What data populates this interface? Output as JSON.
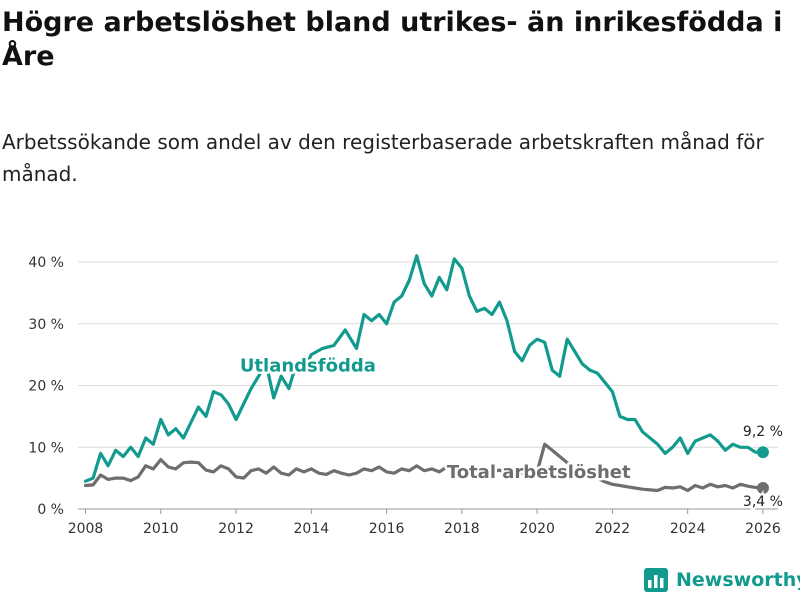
{
  "title": "Högre arbetslöshet bland utrikes- än inrikesfödda i Åre",
  "subtitle": "Arbetssökande som andel av den registerbaserade arbetskraften månad för månad.",
  "brand": {
    "name": "Newsworthy",
    "icon": "bar-chart-icon"
  },
  "chart_data": {
    "type": "line",
    "title": "Högre arbetslöshet bland utrikes- än inrikesfödda i Åre",
    "ylabel": "",
    "xlabel": "",
    "ylim": [
      0,
      40
    ],
    "xlim": [
      2007.8,
      2026.4
    ],
    "yticks": [
      0,
      10,
      20,
      30,
      40
    ],
    "ytick_labels": [
      "0 %",
      "10 %",
      "20 %",
      "30 %",
      "40 %"
    ],
    "xticks": [
      2008,
      2010,
      2012,
      2014,
      2016,
      2018,
      2020,
      2022,
      2024,
      2026
    ],
    "xtick_labels": [
      "2008",
      "2010",
      "2012",
      "2014",
      "2016",
      "2018",
      "2020",
      "2022",
      "2024",
      "2026"
    ],
    "grid": true,
    "series": [
      {
        "name": "Utlandsfödda",
        "color": "#139a8e",
        "points": [
          [
            2008.0,
            4.5
          ],
          [
            2008.2,
            5.0
          ],
          [
            2008.4,
            9.0
          ],
          [
            2008.6,
            7.0
          ],
          [
            2008.8,
            9.5
          ],
          [
            2009.0,
            8.5
          ],
          [
            2009.2,
            10.0
          ],
          [
            2009.4,
            8.5
          ],
          [
            2009.6,
            11.5
          ],
          [
            2009.8,
            10.5
          ],
          [
            2010.0,
            14.5
          ],
          [
            2010.2,
            12.0
          ],
          [
            2010.4,
            13.0
          ],
          [
            2010.6,
            11.5
          ],
          [
            2010.8,
            14.0
          ],
          [
            2011.0,
            16.5
          ],
          [
            2011.2,
            15.0
          ],
          [
            2011.4,
            19.0
          ],
          [
            2011.6,
            18.5
          ],
          [
            2011.8,
            17.0
          ],
          [
            2012.0,
            14.5
          ],
          [
            2012.2,
            17.0
          ],
          [
            2012.4,
            19.5
          ],
          [
            2012.6,
            21.5
          ],
          [
            2012.8,
            23.5
          ],
          [
            2013.0,
            18.0
          ],
          [
            2013.2,
            21.5
          ],
          [
            2013.4,
            19.5
          ],
          [
            2013.6,
            23.5
          ],
          [
            2013.8,
            22.5
          ],
          [
            2014.0,
            25.0
          ],
          [
            2014.3,
            26.0
          ],
          [
            2014.6,
            26.5
          ],
          [
            2014.9,
            29.0
          ],
          [
            2015.2,
            26.0
          ],
          [
            2015.4,
            31.5
          ],
          [
            2015.6,
            30.5
          ],
          [
            2015.8,
            31.5
          ],
          [
            2016.0,
            30.0
          ],
          [
            2016.2,
            33.5
          ],
          [
            2016.4,
            34.5
          ],
          [
            2016.6,
            37.0
          ],
          [
            2016.8,
            41.0
          ],
          [
            2017.0,
            36.5
          ],
          [
            2017.2,
            34.5
          ],
          [
            2017.4,
            37.5
          ],
          [
            2017.6,
            35.5
          ],
          [
            2017.8,
            40.5
          ],
          [
            2018.0,
            39.0
          ],
          [
            2018.2,
            34.5
          ],
          [
            2018.4,
            32.0
          ],
          [
            2018.6,
            32.5
          ],
          [
            2018.8,
            31.5
          ],
          [
            2019.0,
            33.5
          ],
          [
            2019.2,
            30.5
          ],
          [
            2019.4,
            25.5
          ],
          [
            2019.6,
            24.0
          ],
          [
            2019.8,
            26.5
          ],
          [
            2020.0,
            27.5
          ],
          [
            2020.2,
            27.0
          ],
          [
            2020.4,
            22.5
          ],
          [
            2020.6,
            21.5
          ],
          [
            2020.8,
            27.5
          ],
          [
            2021.0,
            25.5
          ],
          [
            2021.2,
            23.5
          ],
          [
            2021.4,
            22.5
          ],
          [
            2021.6,
            22.0
          ],
          [
            2021.8,
            20.5
          ],
          [
            2022.0,
            19.0
          ],
          [
            2022.2,
            15.0
          ],
          [
            2022.4,
            14.5
          ],
          [
            2022.6,
            14.5
          ],
          [
            2022.8,
            12.5
          ],
          [
            2023.0,
            11.5
          ],
          [
            2023.2,
            10.5
          ],
          [
            2023.4,
            9.0
          ],
          [
            2023.6,
            10.0
          ],
          [
            2023.8,
            11.5
          ],
          [
            2024.0,
            9.0
          ],
          [
            2024.2,
            11.0
          ],
          [
            2024.4,
            11.5
          ],
          [
            2024.6,
            12.0
          ],
          [
            2024.8,
            11.0
          ],
          [
            2025.0,
            9.5
          ],
          [
            2025.2,
            10.5
          ],
          [
            2025.4,
            10.0
          ],
          [
            2025.6,
            10.0
          ],
          [
            2025.8,
            9.2
          ],
          [
            2026.0,
            9.2
          ]
        ]
      },
      {
        "name": "Total arbetslöshet",
        "color": "#6e6e6e",
        "points": [
          [
            2008.0,
            3.8
          ],
          [
            2008.2,
            3.9
          ],
          [
            2008.4,
            5.5
          ],
          [
            2008.6,
            4.8
          ],
          [
            2008.8,
            5.0
          ],
          [
            2009.0,
            5.0
          ],
          [
            2009.2,
            4.6
          ],
          [
            2009.4,
            5.2
          ],
          [
            2009.6,
            7.0
          ],
          [
            2009.8,
            6.5
          ],
          [
            2010.0,
            8.0
          ],
          [
            2010.2,
            6.8
          ],
          [
            2010.4,
            6.5
          ],
          [
            2010.6,
            7.5
          ],
          [
            2010.8,
            7.6
          ],
          [
            2011.0,
            7.5
          ],
          [
            2011.2,
            6.3
          ],
          [
            2011.4,
            6.0
          ],
          [
            2011.6,
            7.0
          ],
          [
            2011.8,
            6.5
          ],
          [
            2012.0,
            5.2
          ],
          [
            2012.2,
            5.0
          ],
          [
            2012.4,
            6.2
          ],
          [
            2012.6,
            6.5
          ],
          [
            2012.8,
            5.8
          ],
          [
            2013.0,
            6.8
          ],
          [
            2013.2,
            5.8
          ],
          [
            2013.4,
            5.5
          ],
          [
            2013.6,
            6.5
          ],
          [
            2013.8,
            6.0
          ],
          [
            2014.0,
            6.5
          ],
          [
            2014.2,
            5.8
          ],
          [
            2014.4,
            5.6
          ],
          [
            2014.6,
            6.2
          ],
          [
            2014.8,
            5.8
          ],
          [
            2015.0,
            5.5
          ],
          [
            2015.2,
            5.8
          ],
          [
            2015.4,
            6.5
          ],
          [
            2015.6,
            6.2
          ],
          [
            2015.8,
            6.8
          ],
          [
            2016.0,
            6.0
          ],
          [
            2016.2,
            5.8
          ],
          [
            2016.4,
            6.5
          ],
          [
            2016.6,
            6.2
          ],
          [
            2016.8,
            7.0
          ],
          [
            2017.0,
            6.2
          ],
          [
            2017.2,
            6.5
          ],
          [
            2017.4,
            6.0
          ],
          [
            2017.6,
            6.8
          ],
          [
            2017.8,
            6.5
          ],
          [
            2018.0,
            6.3
          ],
          [
            2018.2,
            6.0
          ],
          [
            2018.4,
            6.5
          ],
          [
            2018.6,
            6.2
          ],
          [
            2018.8,
            6.0
          ],
          [
            2019.0,
            6.3
          ],
          [
            2019.2,
            5.8
          ],
          [
            2019.4,
            5.5
          ],
          [
            2019.6,
            5.8
          ],
          [
            2019.8,
            5.6
          ],
          [
            2020.0,
            6.0
          ],
          [
            2020.2,
            10.5
          ],
          [
            2020.4,
            9.5
          ],
          [
            2020.6,
            8.5
          ],
          [
            2020.8,
            7.5
          ],
          [
            2021.0,
            6.8
          ],
          [
            2021.2,
            6.0
          ],
          [
            2021.4,
            5.6
          ],
          [
            2021.6,
            5.0
          ],
          [
            2021.8,
            4.4
          ],
          [
            2022.0,
            4.0
          ],
          [
            2022.2,
            3.8
          ],
          [
            2022.4,
            3.6
          ],
          [
            2022.6,
            3.4
          ],
          [
            2022.8,
            3.2
          ],
          [
            2023.0,
            3.1
          ],
          [
            2023.2,
            3.0
          ],
          [
            2023.4,
            3.5
          ],
          [
            2023.6,
            3.4
          ],
          [
            2023.8,
            3.6
          ],
          [
            2024.0,
            3.0
          ],
          [
            2024.2,
            3.8
          ],
          [
            2024.4,
            3.4
          ],
          [
            2024.6,
            4.0
          ],
          [
            2024.8,
            3.6
          ],
          [
            2025.0,
            3.8
          ],
          [
            2025.2,
            3.4
          ],
          [
            2025.4,
            4.0
          ],
          [
            2025.6,
            3.7
          ],
          [
            2025.8,
            3.5
          ],
          [
            2026.0,
            3.4
          ]
        ]
      }
    ],
    "annotations": [
      {
        "series": "Utlandsfödda",
        "label": "Utlandsfödda"
      },
      {
        "series": "Total arbetslöshet",
        "label": "Total arbetslöshet"
      }
    ],
    "end_labels": [
      {
        "series": "Utlandsfödda",
        "value": 9.2,
        "label": "9,2 %"
      },
      {
        "series": "Total arbetslöshet",
        "value": 3.4,
        "label": "3,4 %"
      }
    ]
  }
}
